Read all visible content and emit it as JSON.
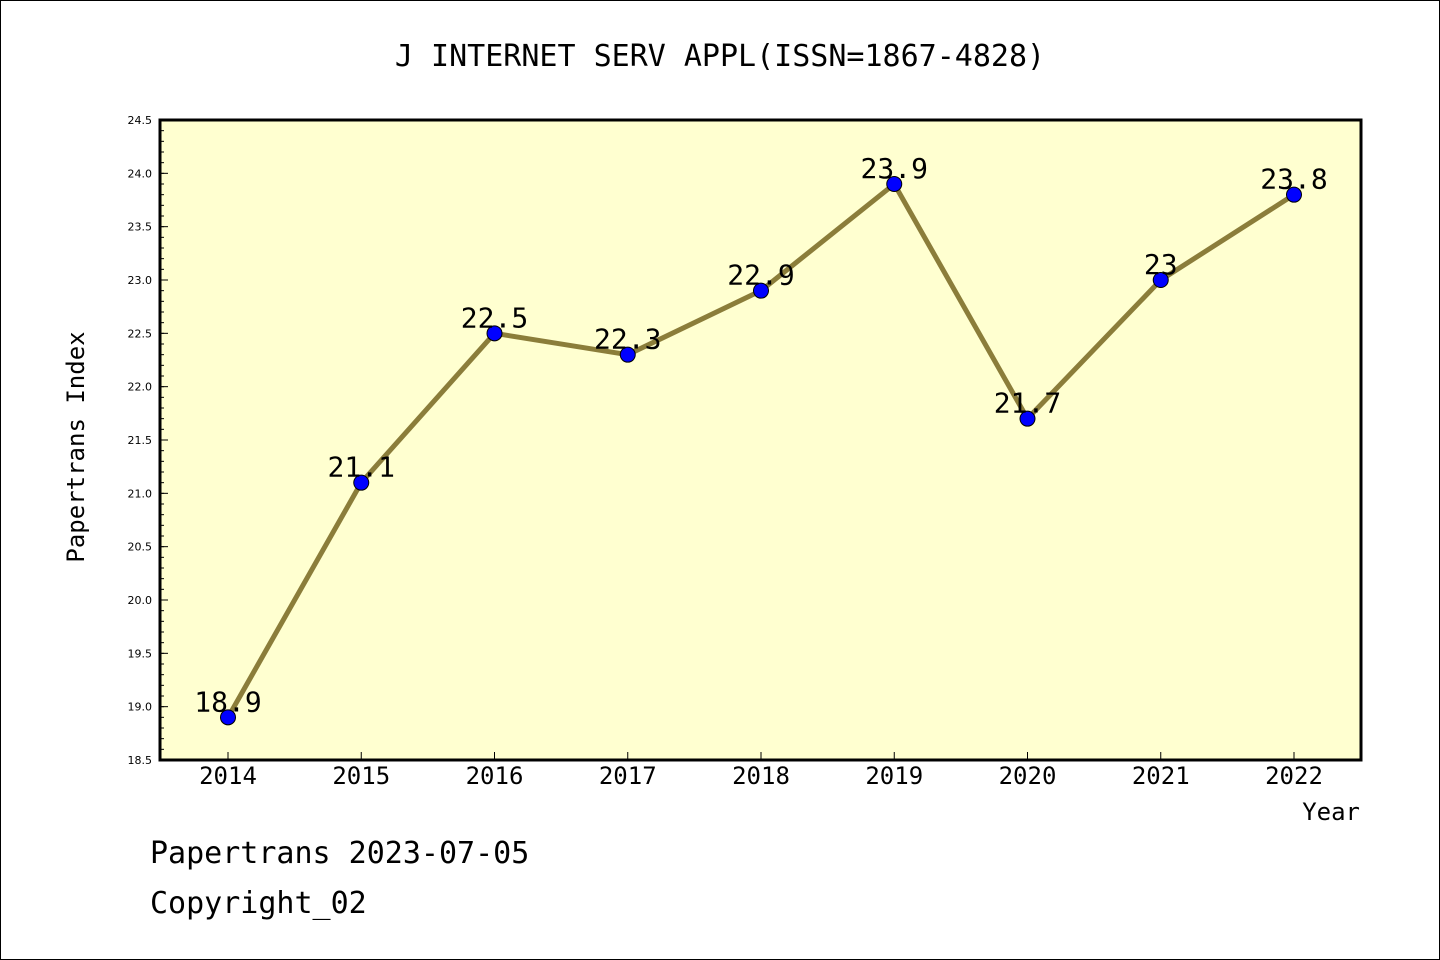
{
  "chart_data": {
    "type": "line",
    "title": "J INTERNET SERV APPL(ISSN=1867-4828)",
    "xlabel": "Year",
    "ylabel": "Papertrans Index",
    "categories": [
      "2014",
      "2015",
      "2016",
      "2017",
      "2018",
      "2019",
      "2020",
      "2021",
      "2022"
    ],
    "series": [
      {
        "values": [
          18.9,
          21.1,
          22.5,
          22.3,
          22.9,
          23.9,
          21.7,
          23.0,
          23.8
        ]
      }
    ],
    "data_labels": [
      "18.9",
      "21.1",
      "22.5",
      "22.3",
      "22.9",
      "23.9",
      "21.7",
      "23",
      "23.8"
    ],
    "ylim": [
      18.5,
      24.5
    ],
    "yticks": [
      "18.5",
      "19.0",
      "19.5",
      "20.0",
      "20.5",
      "21.0",
      "21.5",
      "22.0",
      "22.5",
      "23.0",
      "23.5",
      "24.0",
      "24.5"
    ],
    "grid": false,
    "colors": {
      "plot_background": "#ffffd0",
      "line": "#8b7d3a",
      "marker": "#0000ff"
    }
  },
  "footer": {
    "line1": "Papertrans 2023-07-05",
    "line2": "Copyright_02"
  }
}
